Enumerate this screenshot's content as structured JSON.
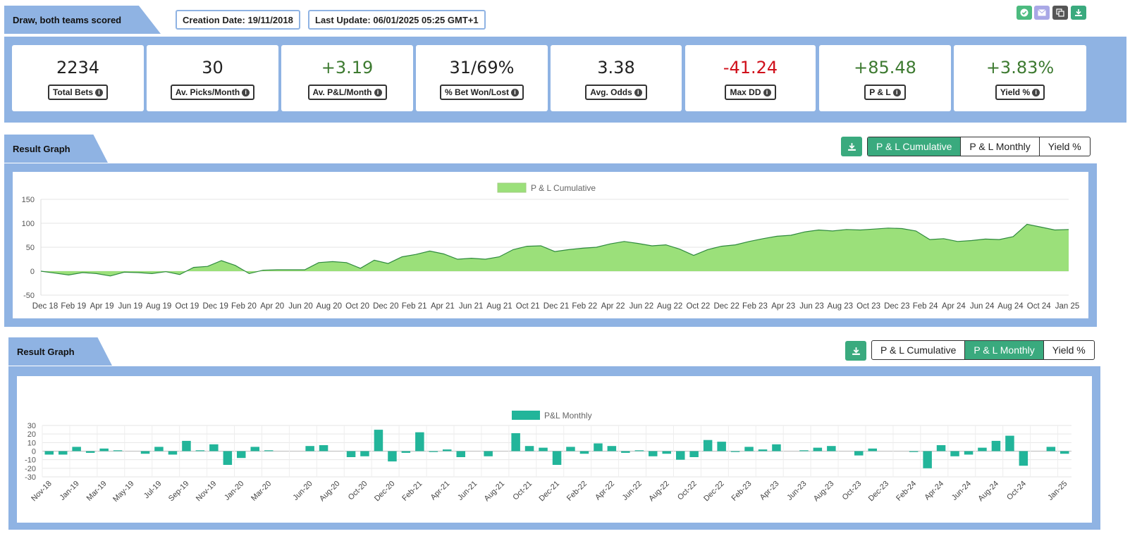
{
  "header": {
    "title": "Draw, both teams scored",
    "creation_date": "Creation Date: 19/11/2018",
    "last_update": "Last Update: 06/01/2025 05:25 GMT+1"
  },
  "toolbar": {
    "icons": [
      "check-circle-icon",
      "envelope-icon",
      "copy-icon",
      "download-icon"
    ],
    "colors": [
      "#4cbb7f",
      "#a9a8e6",
      "#555555",
      "#3aaa7e"
    ]
  },
  "stats": [
    {
      "value": "2234",
      "label": "Total Bets",
      "tone": "neutral"
    },
    {
      "value": "30",
      "label": "Av. Picks/Month",
      "tone": "neutral"
    },
    {
      "value": "+3.19",
      "label": "Av. P&L/Month",
      "tone": "pos"
    },
    {
      "value": "31/69%",
      "label": "% Bet Won/Lost",
      "tone": "neutral"
    },
    {
      "value": "3.38",
      "label": "Avg. Odds",
      "tone": "neutral"
    },
    {
      "value": "-41.24",
      "label": "Max DD",
      "tone": "neg"
    },
    {
      "value": "+85.48",
      "label": "P & L",
      "tone": "pos"
    },
    {
      "value": "+3.83%",
      "label": "Yield %",
      "tone": "pos"
    }
  ],
  "graph1": {
    "title": "Result Graph",
    "buttons": [
      "P & L Cumulative",
      "P & L Monthly",
      "Yield %"
    ],
    "active": 0
  },
  "graph2": {
    "title": "Result Graph",
    "buttons": [
      "P & L Cumulative",
      "P & L Monthly",
      "Yield %"
    ],
    "active": 1
  },
  "chart_data": [
    {
      "type": "area",
      "legend": "P & L Cumulative",
      "legend_position": "top",
      "color": "#9be07a",
      "line_color": "#2f8a3e",
      "ylim": [
        -50,
        150
      ],
      "yticks": [
        -50,
        0,
        50,
        100,
        150
      ],
      "grid": true,
      "xticks": [
        "Dec 18",
        "Feb 19",
        "Apr 19",
        "Jun 19",
        "Aug 19",
        "Oct 19",
        "Dec 19",
        "Feb 20",
        "Apr 20",
        "Jun 20",
        "Aug 20",
        "Oct 20",
        "Dec 20",
        "Feb 21",
        "Apr 21",
        "Jun 21",
        "Aug 21",
        "Oct 21",
        "Dec 21",
        "Feb 22",
        "Apr 22",
        "Jun 22",
        "Aug 22",
        "Oct 22",
        "Dec 22",
        "Feb 23",
        "Apr 23",
        "Jun 23",
        "Aug 23",
        "Oct 23",
        "Dec 23",
        "Feb 24",
        "Apr 24",
        "Jun 24",
        "Aug 24",
        "Oct 24",
        "Jan 25"
      ],
      "x": [
        "2018-11-19",
        "2018-12",
        "2019-01",
        "2019-02",
        "2019-03",
        "2019-04",
        "2019-05",
        "2019-06",
        "2019-07",
        "2019-08",
        "2019-09",
        "2019-10",
        "2019-11",
        "2019-12",
        "2020-01",
        "2020-02",
        "2020-03",
        "2020-04",
        "2020-05",
        "2020-06",
        "2020-07",
        "2020-08",
        "2020-09",
        "2020-10",
        "2020-11",
        "2020-12",
        "2021-01",
        "2021-02",
        "2021-03",
        "2021-04",
        "2021-05",
        "2021-06",
        "2021-07",
        "2021-08",
        "2021-09",
        "2021-10",
        "2021-11",
        "2021-12",
        "2022-01",
        "2022-02",
        "2022-03",
        "2022-04",
        "2022-05",
        "2022-06",
        "2022-07",
        "2022-08",
        "2022-09",
        "2022-10",
        "2022-11",
        "2022-12",
        "2023-01",
        "2023-02",
        "2023-03",
        "2023-04",
        "2023-05",
        "2023-06",
        "2023-07",
        "2023-08",
        "2023-09",
        "2023-10",
        "2023-11",
        "2023-12",
        "2024-01",
        "2024-02",
        "2024-03",
        "2024-04",
        "2024-05",
        "2024-06",
        "2024-07",
        "2024-08",
        "2024-09",
        "2024-10",
        "2024-11",
        "2024-12",
        "2025-01-06"
      ],
      "y": [
        0,
        -4,
        -8,
        -3,
        -5,
        -10,
        -2,
        -3,
        -5,
        -1,
        -7,
        8,
        10,
        22,
        12,
        -5,
        2,
        3,
        3,
        3,
        18,
        20,
        18,
        6,
        23,
        16,
        30,
        35,
        42,
        36,
        25,
        27,
        25,
        30,
        45,
        52,
        53,
        41,
        45,
        48,
        50,
        57,
        62,
        58,
        53,
        55,
        46,
        33,
        45,
        52,
        55,
        62,
        68,
        73,
        75,
        82,
        86,
        84,
        87,
        86,
        88,
        90,
        89,
        84,
        66,
        68,
        62,
        64,
        67,
        66,
        72,
        98,
        92,
        86,
        87
      ]
    },
    {
      "type": "bar",
      "legend": "P&L Monthly",
      "legend_position": "top",
      "color": "#22b59a",
      "ylim": [
        -30,
        30
      ],
      "yticks": [
        -30,
        -20,
        -10,
        0,
        10,
        20,
        30
      ],
      "grid": true,
      "categories": [
        "Nov-18",
        "Dec-18",
        "Jan-19",
        "Feb-19",
        "Mar-19",
        "Apr-19",
        "May-19",
        "Jun-19",
        "Jul-19",
        "Aug-19",
        "Sep-19",
        "Oct-19",
        "Nov-19",
        "Dec-19",
        "Jan-20",
        "Feb-20",
        "Mar-20",
        "Apr-20",
        "May-20",
        "Jun-20",
        "Jul-20",
        "Aug-20",
        "Sep-20",
        "Oct-20",
        "Nov-20",
        "Dec-20",
        "Jan-21",
        "Feb-21",
        "Mar-21",
        "Apr-21",
        "May-21",
        "Jun-21",
        "Jul-21",
        "Aug-21",
        "Sep-21",
        "Oct-21",
        "Nov-21",
        "Dec-21",
        "Jan-22",
        "Feb-22",
        "Mar-22",
        "Apr-22",
        "May-22",
        "Jun-22",
        "Jul-22",
        "Aug-22",
        "Sep-22",
        "Oct-22",
        "Nov-22",
        "Dec-22",
        "Jan-23",
        "Feb-23",
        "Mar-23",
        "Apr-23",
        "May-23",
        "Jun-23",
        "Jul-23",
        "Aug-23",
        "Sep-23",
        "Oct-23",
        "Nov-23",
        "Dec-23",
        "Jan-24",
        "Feb-24",
        "Mar-24",
        "Apr-24",
        "May-24",
        "Jun-24",
        "Jul-24",
        "Aug-24",
        "Sep-24",
        "Oct-24",
        "Nov-24",
        "Dec-24",
        "Jan-25"
      ],
      "tick_labels": [
        "Nov-18",
        "Jan-19",
        "Mar-19",
        "May-19",
        "Jul-19",
        "Sep-19",
        "Nov-19",
        "Jan-20",
        "Mar-20",
        "Jun-20",
        "Aug-20",
        "Oct-20",
        "Dec-20",
        "Feb-21",
        "Apr-21",
        "Jun-21",
        "Aug-21",
        "Oct-21",
        "Dec-21",
        "Feb-22",
        "Apr-22",
        "Jun-22",
        "Aug-22",
        "Oct-22",
        "Dec-22",
        "Feb-23",
        "Apr-23",
        "Jun-23",
        "Aug-23",
        "Oct-23",
        "Dec-23",
        "Feb-24",
        "Apr-24",
        "Jun-24",
        "Aug-24",
        "Oct-24",
        "Jan-25"
      ],
      "values": [
        -4,
        -4,
        5,
        -2,
        3,
        1,
        0,
        -3,
        5,
        -4,
        12,
        1,
        8,
        -16,
        -8,
        5,
        1,
        0,
        0,
        6,
        7,
        0,
        -7,
        -6,
        25,
        -12,
        -2,
        22,
        -1,
        2,
        -7,
        0,
        -6,
        0,
        21,
        6,
        4,
        -16,
        5,
        -3,
        9,
        6,
        -2,
        1,
        -6,
        -3,
        -10,
        -7,
        13,
        11,
        -1,
        5,
        2,
        8,
        0,
        1,
        4,
        6,
        0,
        -5,
        3,
        0,
        0,
        -1,
        -20,
        7,
        -6,
        -4,
        4,
        12,
        18,
        -17,
        0,
        5,
        -3
      ]
    }
  ]
}
